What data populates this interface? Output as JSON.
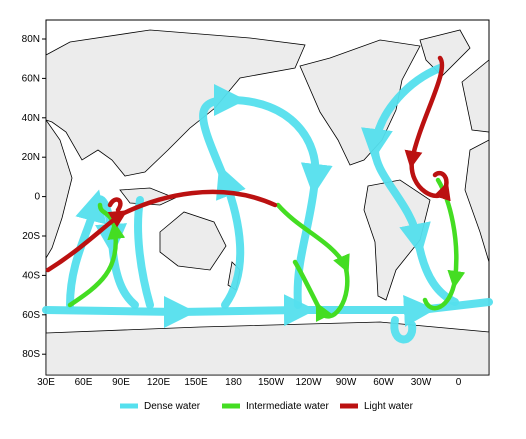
{
  "map": {
    "y_labels": [
      "80N",
      "60N",
      "40N",
      "20N",
      "0",
      "20S",
      "40S",
      "60S",
      "80S"
    ],
    "x_labels": [
      "30E",
      "60E",
      "90E",
      "120E",
      "150E",
      "180",
      "150W",
      "120W",
      "90W",
      "60W",
      "30W",
      "0"
    ]
  },
  "legend": [
    {
      "label": "Dense water",
      "color": "#55e0ee"
    },
    {
      "label": "Intermediate water",
      "color": "#44dd22"
    },
    {
      "label": "Light water",
      "color": "#bb1111"
    }
  ]
}
